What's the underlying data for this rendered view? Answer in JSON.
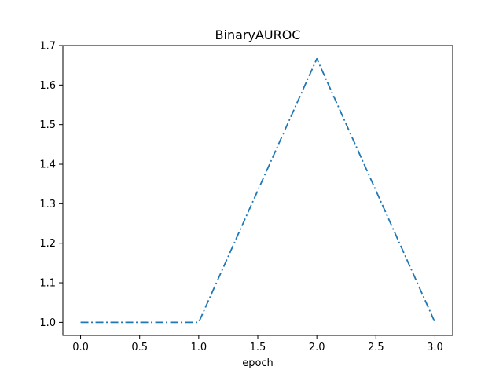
{
  "chart_data": {
    "type": "line",
    "title": "BinaryAUROC",
    "xlabel": "epoch",
    "ylabel": "",
    "x": [
      0,
      1,
      2,
      3
    ],
    "series": [
      {
        "values": [
          1.0,
          1.0,
          1.6667,
          1.0
        ],
        "color": "#1f77b4",
        "line_style": "dashdot"
      }
    ],
    "xlim": [
      -0.15,
      3.15
    ],
    "ylim": [
      0.967,
      1.7
    ],
    "x_ticks": [
      0,
      0.5,
      1,
      1.5,
      2,
      2.5,
      3
    ],
    "x_tick_labels": [
      "0.0",
      "0.5",
      "1.0",
      "1.5",
      "2.0",
      "2.5",
      "3.0"
    ],
    "y_ticks": [
      1.0,
      1.1,
      1.2,
      1.3,
      1.4,
      1.5,
      1.6,
      1.7
    ],
    "y_tick_labels": [
      "1.0",
      "1.1",
      "1.2",
      "1.3",
      "1.4",
      "1.5",
      "1.6",
      "1.7"
    ],
    "grid": false,
    "legend": false
  }
}
